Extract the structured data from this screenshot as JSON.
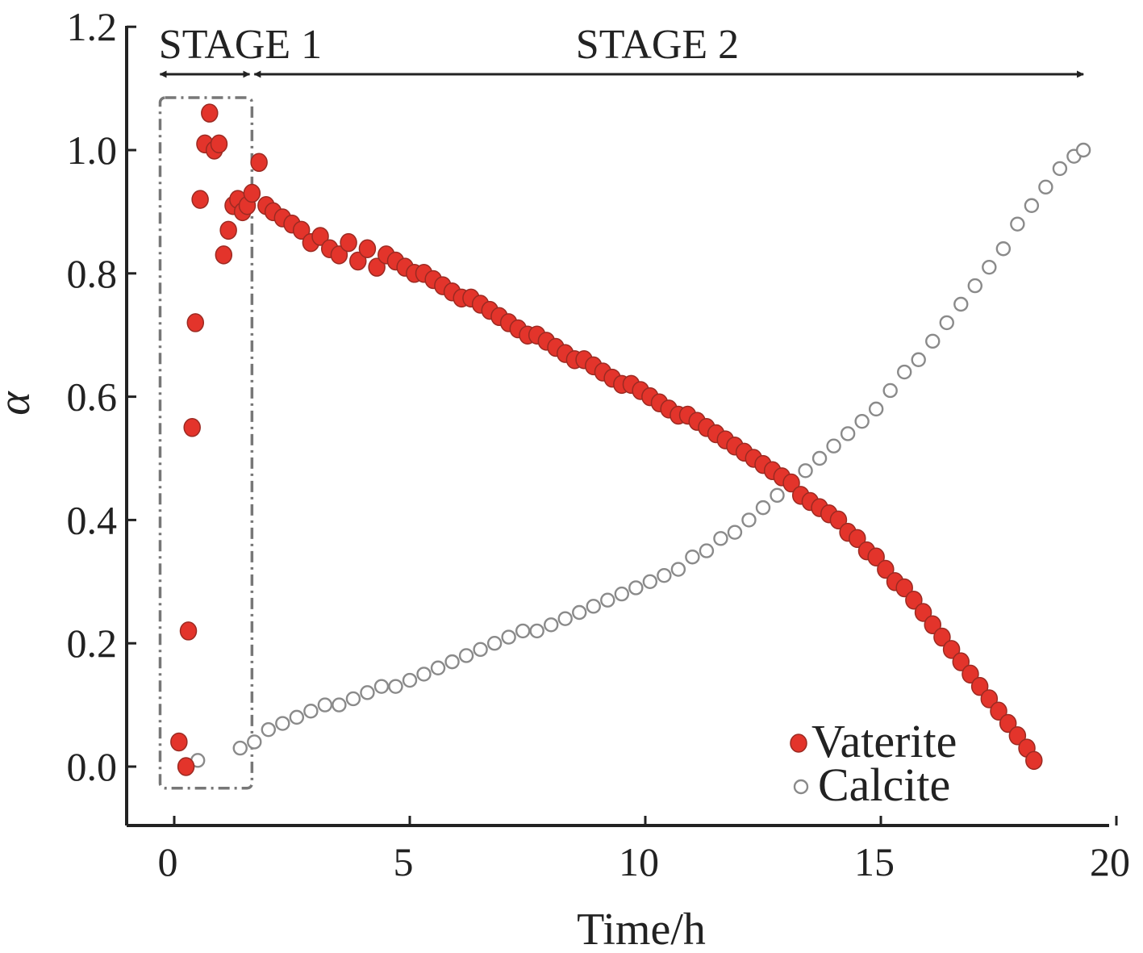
{
  "chart_data": {
    "type": "scatter",
    "xlabel": "Time/h",
    "ylabel": "α",
    "xlim": [
      -1,
      20
    ],
    "ylim": [
      -0.1,
      1.2
    ],
    "x_ticks": [
      "0",
      "5",
      "10",
      "15",
      "20"
    ],
    "x_tick_values": [
      0,
      5,
      10,
      15,
      20
    ],
    "y_ticks": [
      "0.0",
      "0.2",
      "0.4",
      "0.6",
      "0.8",
      "1.0",
      "1.2"
    ],
    "y_tick_values": [
      0.0,
      0.2,
      0.4,
      0.6,
      0.8,
      1.0,
      1.2
    ],
    "grid": false,
    "legend_position": "bottom-right",
    "stages": [
      {
        "label": "STAGE 1",
        "x_start": -0.3,
        "x_end": 1.6
      },
      {
        "label": "STAGE 2",
        "x_start": 1.7,
        "x_end": 19.3
      }
    ],
    "stage1_box": {
      "x_start": -0.3,
      "x_end": 1.65,
      "y_start": -0.035,
      "y_end": 1.085
    },
    "series": [
      {
        "name": "Vaterite",
        "marker": "filled-circle",
        "color": "#e3342b",
        "x": [
          0.1,
          0.25,
          0.3,
          0.38,
          0.45,
          0.55,
          0.65,
          0.75,
          0.85,
          0.95,
          1.05,
          1.15,
          1.25,
          1.35,
          1.45,
          1.55,
          1.65,
          1.8,
          1.95,
          2.1,
          2.3,
          2.5,
          2.7,
          2.9,
          3.1,
          3.3,
          3.5,
          3.7,
          3.9,
          4.1,
          4.3,
          4.5,
          4.7,
          4.9,
          5.1,
          5.3,
          5.5,
          5.7,
          5.9,
          6.1,
          6.3,
          6.5,
          6.7,
          6.9,
          7.1,
          7.3,
          7.5,
          7.7,
          7.9,
          8.1,
          8.3,
          8.5,
          8.7,
          8.9,
          9.1,
          9.3,
          9.5,
          9.7,
          9.9,
          10.1,
          10.3,
          10.5,
          10.7,
          10.9,
          11.1,
          11.3,
          11.5,
          11.7,
          11.9,
          12.1,
          12.3,
          12.5,
          12.7,
          12.9,
          13.1,
          13.3,
          13.5,
          13.7,
          13.9,
          14.1,
          14.3,
          14.5,
          14.7,
          14.9,
          15.1,
          15.3,
          15.5,
          15.7,
          15.9,
          16.1,
          16.3,
          16.5,
          16.7,
          16.9,
          17.1,
          17.3,
          17.5,
          17.7,
          17.9,
          18.1,
          18.25
        ],
        "y": [
          0.04,
          0.0,
          0.22,
          0.55,
          0.72,
          0.92,
          1.01,
          1.06,
          1.0,
          1.01,
          0.83,
          0.87,
          0.91,
          0.92,
          0.9,
          0.91,
          0.93,
          0.98,
          0.91,
          0.9,
          0.89,
          0.88,
          0.87,
          0.85,
          0.86,
          0.84,
          0.83,
          0.85,
          0.82,
          0.84,
          0.81,
          0.83,
          0.82,
          0.81,
          0.8,
          0.8,
          0.79,
          0.78,
          0.77,
          0.76,
          0.76,
          0.75,
          0.74,
          0.73,
          0.72,
          0.71,
          0.7,
          0.7,
          0.69,
          0.68,
          0.67,
          0.66,
          0.66,
          0.65,
          0.64,
          0.63,
          0.62,
          0.62,
          0.61,
          0.6,
          0.59,
          0.58,
          0.57,
          0.57,
          0.56,
          0.55,
          0.54,
          0.53,
          0.52,
          0.51,
          0.5,
          0.49,
          0.48,
          0.47,
          0.46,
          0.44,
          0.43,
          0.42,
          0.41,
          0.4,
          0.38,
          0.37,
          0.35,
          0.34,
          0.32,
          0.3,
          0.29,
          0.27,
          0.25,
          0.23,
          0.21,
          0.19,
          0.17,
          0.15,
          0.13,
          0.11,
          0.09,
          0.07,
          0.05,
          0.03,
          0.01
        ]
      },
      {
        "name": "Calcite",
        "marker": "open-circle",
        "color": "#8a8a8a",
        "x": [
          0.5,
          1.4,
          1.7,
          2.0,
          2.3,
          2.6,
          2.9,
          3.2,
          3.5,
          3.8,
          4.1,
          4.4,
          4.7,
          5.0,
          5.3,
          5.6,
          5.9,
          6.2,
          6.5,
          6.8,
          7.1,
          7.4,
          7.7,
          8.0,
          8.3,
          8.6,
          8.9,
          9.2,
          9.5,
          9.8,
          10.1,
          10.4,
          10.7,
          11.0,
          11.3,
          11.6,
          11.9,
          12.2,
          12.5,
          12.8,
          13.1,
          13.4,
          13.7,
          14.0,
          14.3,
          14.6,
          14.9,
          15.2,
          15.5,
          15.8,
          16.1,
          16.4,
          16.7,
          17.0,
          17.3,
          17.6,
          17.9,
          18.2,
          18.5,
          18.8,
          19.1,
          19.3
        ],
        "y": [
          0.01,
          0.03,
          0.04,
          0.06,
          0.07,
          0.08,
          0.09,
          0.1,
          0.1,
          0.11,
          0.12,
          0.13,
          0.13,
          0.14,
          0.15,
          0.16,
          0.17,
          0.18,
          0.19,
          0.2,
          0.21,
          0.22,
          0.22,
          0.23,
          0.24,
          0.25,
          0.26,
          0.27,
          0.28,
          0.29,
          0.3,
          0.31,
          0.32,
          0.34,
          0.35,
          0.37,
          0.38,
          0.4,
          0.42,
          0.44,
          0.46,
          0.48,
          0.5,
          0.52,
          0.54,
          0.56,
          0.58,
          0.61,
          0.64,
          0.66,
          0.69,
          0.72,
          0.75,
          0.78,
          0.81,
          0.84,
          0.88,
          0.91,
          0.94,
          0.97,
          0.99,
          1.0
        ]
      }
    ]
  }
}
